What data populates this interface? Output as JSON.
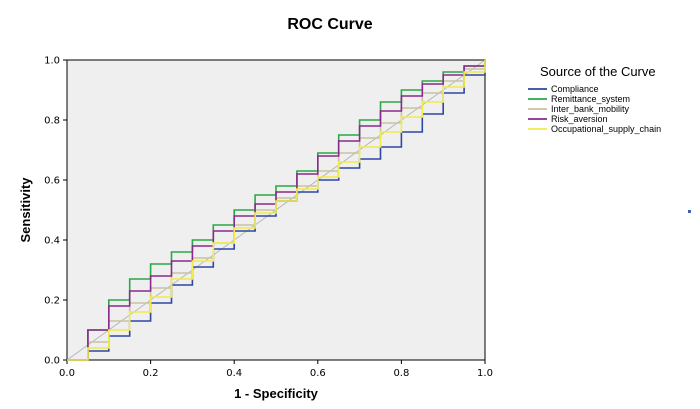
{
  "chart_data": {
    "type": "line",
    "title": "ROC Curve",
    "xlabel": "1 - Specificity",
    "ylabel": "Sensitivity",
    "xlim": [
      0,
      1
    ],
    "ylim": [
      0,
      1
    ],
    "x_ticks": [
      "0.0",
      "0.2",
      "0.4",
      "0.6",
      "0.8",
      "1.0"
    ],
    "y_ticks": [
      "0.0",
      "0.2",
      "0.4",
      "0.6",
      "0.8",
      "1.0"
    ],
    "grid": false,
    "background": "#efefef",
    "legend": {
      "title": "Source of the Curve",
      "placement": "right"
    },
    "series": [
      {
        "name": "Compliance",
        "color": "#2e46a6",
        "x": [
          0,
          0.05,
          0.1,
          0.15,
          0.2,
          0.25,
          0.3,
          0.35,
          0.4,
          0.45,
          0.5,
          0.55,
          0.6,
          0.65,
          0.7,
          0.75,
          0.8,
          0.85,
          0.9,
          0.95,
          1.0
        ],
        "y": [
          0,
          0.03,
          0.08,
          0.13,
          0.19,
          0.25,
          0.31,
          0.37,
          0.43,
          0.48,
          0.53,
          0.56,
          0.6,
          0.64,
          0.67,
          0.71,
          0.76,
          0.82,
          0.89,
          0.95,
          1.0
        ]
      },
      {
        "name": "Remittance_system",
        "color": "#2aa846",
        "x": [
          0,
          0.05,
          0.1,
          0.15,
          0.2,
          0.25,
          0.3,
          0.35,
          0.4,
          0.45,
          0.5,
          0.55,
          0.6,
          0.65,
          0.7,
          0.75,
          0.8,
          0.85,
          0.9,
          0.95,
          1.0
        ],
        "y": [
          0,
          0.1,
          0.2,
          0.27,
          0.32,
          0.36,
          0.4,
          0.45,
          0.5,
          0.55,
          0.58,
          0.63,
          0.69,
          0.75,
          0.8,
          0.86,
          0.9,
          0.93,
          0.96,
          0.98,
          1.0
        ]
      },
      {
        "name": "Inter_bank_mobility",
        "color": "#c9c3a0",
        "x": [
          0,
          0.05,
          0.1,
          0.15,
          0.2,
          0.25,
          0.3,
          0.35,
          0.4,
          0.45,
          0.5,
          0.55,
          0.6,
          0.65,
          0.7,
          0.75,
          0.8,
          0.85,
          0.9,
          0.95,
          1.0
        ],
        "y": [
          0,
          0.06,
          0.13,
          0.19,
          0.24,
          0.29,
          0.34,
          0.39,
          0.45,
          0.5,
          0.54,
          0.58,
          0.63,
          0.69,
          0.74,
          0.79,
          0.84,
          0.89,
          0.93,
          0.97,
          1.0
        ]
      },
      {
        "name": "Risk_aversion",
        "color": "#8a2a8c",
        "x": [
          0,
          0.05,
          0.1,
          0.15,
          0.2,
          0.25,
          0.3,
          0.35,
          0.4,
          0.45,
          0.5,
          0.55,
          0.6,
          0.65,
          0.7,
          0.75,
          0.8,
          0.85,
          0.9,
          0.95,
          1.0
        ],
        "y": [
          0,
          0.1,
          0.18,
          0.23,
          0.28,
          0.33,
          0.38,
          0.43,
          0.48,
          0.52,
          0.56,
          0.62,
          0.68,
          0.73,
          0.78,
          0.83,
          0.88,
          0.92,
          0.95,
          0.98,
          1.0
        ]
      },
      {
        "name": "Occupational_supply_chain",
        "color": "#f1ec4a",
        "x": [
          0,
          0.05,
          0.1,
          0.15,
          0.2,
          0.25,
          0.3,
          0.35,
          0.4,
          0.45,
          0.5,
          0.55,
          0.6,
          0.65,
          0.7,
          0.75,
          0.8,
          0.85,
          0.9,
          0.95,
          1.0
        ],
        "y": [
          0,
          0.04,
          0.1,
          0.16,
          0.21,
          0.27,
          0.33,
          0.39,
          0.44,
          0.49,
          0.53,
          0.57,
          0.61,
          0.66,
          0.71,
          0.76,
          0.81,
          0.86,
          0.91,
          0.96,
          1.0
        ]
      }
    ]
  }
}
